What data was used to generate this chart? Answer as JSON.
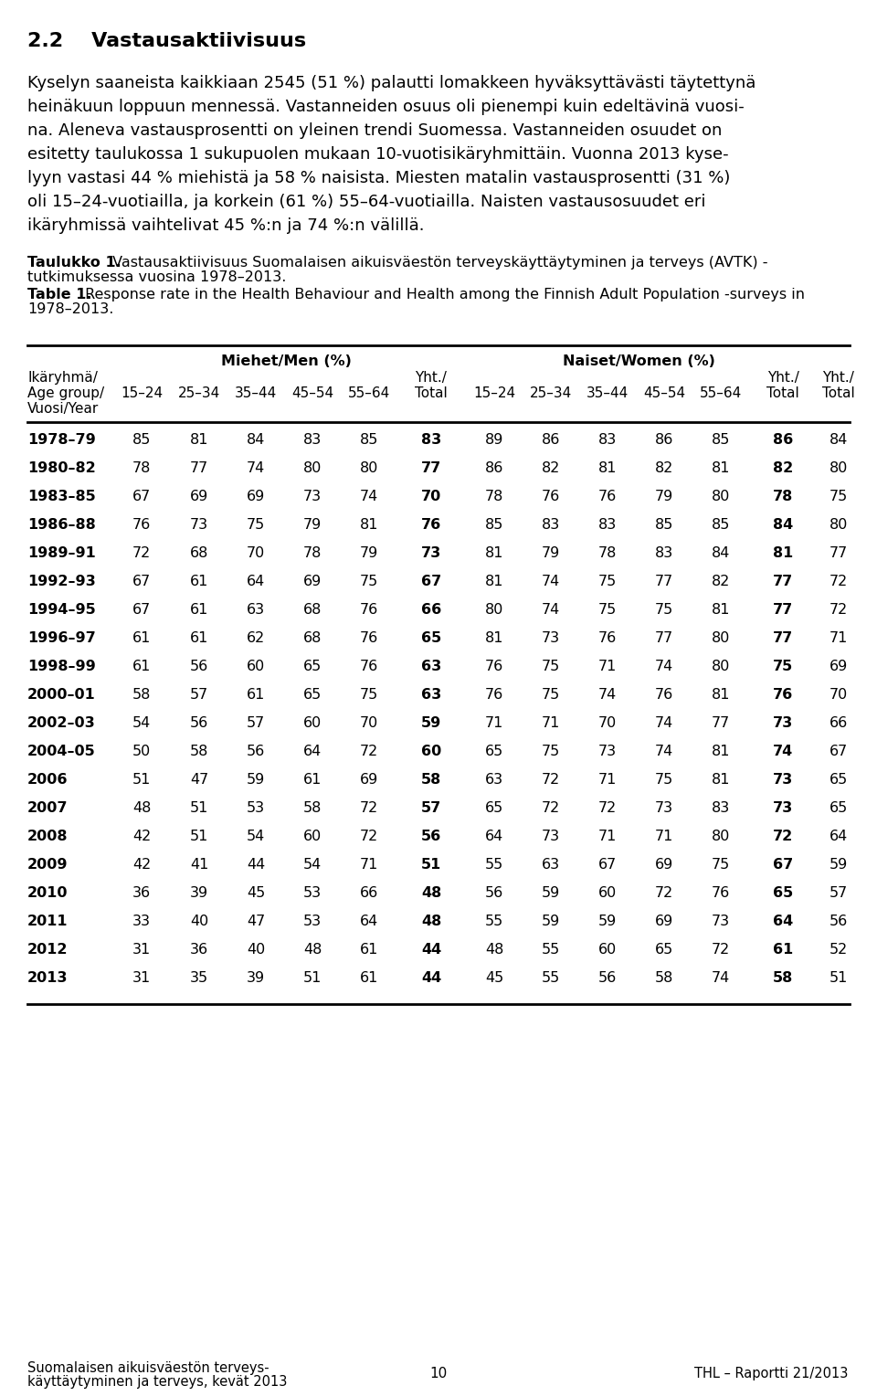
{
  "title_section": "2.2    Vastausaktiivisuus",
  "rows": [
    [
      "1978–79",
      85,
      81,
      84,
      83,
      85,
      83,
      89,
      86,
      83,
      86,
      85,
      86,
      84
    ],
    [
      "1980–82",
      78,
      77,
      74,
      80,
      80,
      77,
      86,
      82,
      81,
      82,
      81,
      82,
      80
    ],
    [
      "1983–85",
      67,
      69,
      69,
      73,
      74,
      70,
      78,
      76,
      76,
      79,
      80,
      78,
      75
    ],
    [
      "1986–88",
      76,
      73,
      75,
      79,
      81,
      76,
      85,
      83,
      83,
      85,
      85,
      84,
      80
    ],
    [
      "1989–91",
      72,
      68,
      70,
      78,
      79,
      73,
      81,
      79,
      78,
      83,
      84,
      81,
      77
    ],
    [
      "1992–93",
      67,
      61,
      64,
      69,
      75,
      67,
      81,
      74,
      75,
      77,
      82,
      77,
      72
    ],
    [
      "1994–95",
      67,
      61,
      63,
      68,
      76,
      66,
      80,
      74,
      75,
      75,
      81,
      77,
      72
    ],
    [
      "1996–97",
      61,
      61,
      62,
      68,
      76,
      65,
      81,
      73,
      76,
      77,
      80,
      77,
      71
    ],
    [
      "1998–99",
      61,
      56,
      60,
      65,
      76,
      63,
      76,
      75,
      71,
      74,
      80,
      75,
      69
    ],
    [
      "2000–01",
      58,
      57,
      61,
      65,
      75,
      63,
      76,
      75,
      74,
      76,
      81,
      76,
      70
    ],
    [
      "2002–03",
      54,
      56,
      57,
      60,
      70,
      59,
      71,
      71,
      70,
      74,
      77,
      73,
      66
    ],
    [
      "2004–05",
      50,
      58,
      56,
      64,
      72,
      60,
      65,
      75,
      73,
      74,
      81,
      74,
      67
    ],
    [
      "2006",
      51,
      47,
      59,
      61,
      69,
      58,
      63,
      72,
      71,
      75,
      81,
      73,
      65
    ],
    [
      "2007",
      48,
      51,
      53,
      58,
      72,
      57,
      65,
      72,
      72,
      73,
      83,
      73,
      65
    ],
    [
      "2008",
      42,
      51,
      54,
      60,
      72,
      56,
      64,
      73,
      71,
      71,
      80,
      72,
      64
    ],
    [
      "2009",
      42,
      41,
      44,
      54,
      71,
      51,
      55,
      63,
      67,
      69,
      75,
      67,
      59
    ],
    [
      "2010",
      36,
      39,
      45,
      53,
      66,
      48,
      56,
      59,
      60,
      72,
      76,
      65,
      57
    ],
    [
      "2011",
      33,
      40,
      47,
      53,
      64,
      48,
      55,
      59,
      59,
      69,
      73,
      64,
      56
    ],
    [
      "2012",
      31,
      36,
      40,
      48,
      61,
      44,
      48,
      55,
      60,
      65,
      72,
      61,
      52
    ],
    [
      "2013",
      31,
      35,
      39,
      51,
      61,
      44,
      45,
      55,
      56,
      58,
      74,
      58,
      51
    ]
  ],
  "bg_color": "#ffffff",
  "text_color": "#000000",
  "footer_left_1": "Suomalaisen aikuisväestön terveys-",
  "footer_left_2": "käyttäytyminen ja terveys, kevät 2013",
  "footer_center": "10",
  "footer_right": "THL – Raportti 21/2013"
}
